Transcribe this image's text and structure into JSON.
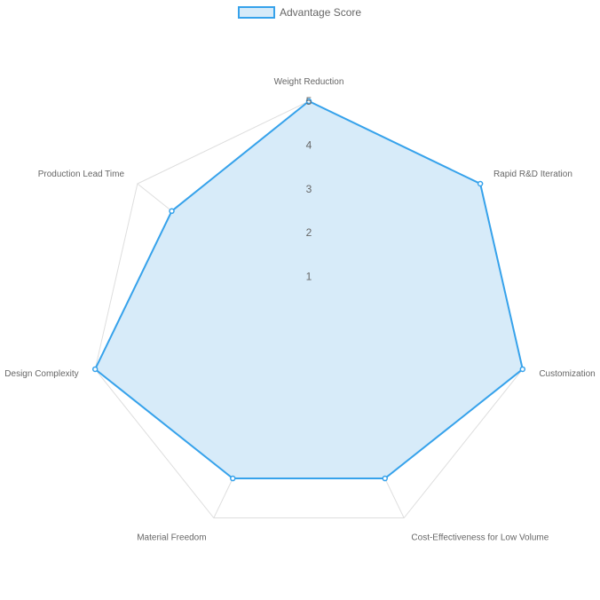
{
  "chart_data": {
    "type": "radar",
    "axes": [
      "Weight Reduction",
      "Rapid R&D Iteration",
      "Customization",
      "Cost-Effectiveness for Low Volume",
      "Material Freedom",
      "Design Complexity",
      "Production Lead Time"
    ],
    "series": [
      {
        "name": "Advantage Score",
        "values": [
          5,
          5,
          5,
          4,
          4,
          5,
          4
        ],
        "line_color": "#36a2eb",
        "fill_color": "#d7ebf9"
      }
    ],
    "r_range": [
      0,
      5
    ],
    "ticks": [
      "1",
      "2",
      "3",
      "4",
      "5"
    ],
    "grid": true,
    "legend": "top"
  }
}
